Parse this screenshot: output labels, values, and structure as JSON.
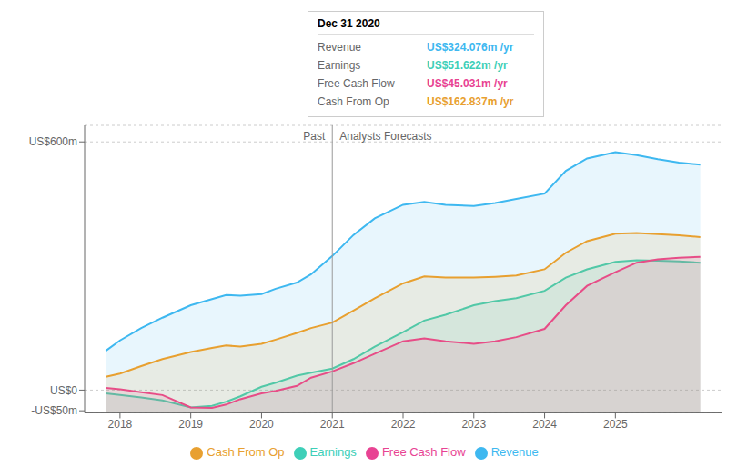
{
  "chart_data": {
    "type": "area",
    "x": [
      2017.8,
      2018.0,
      2018.3,
      2018.6,
      2019.0,
      2019.3,
      2019.5,
      2019.7,
      2020.0,
      2020.2,
      2020.5,
      2020.7,
      2021.0,
      2021.3,
      2021.6,
      2022.0,
      2022.3,
      2022.6,
      2023.0,
      2023.3,
      2023.6,
      2024.0,
      2024.3,
      2024.6,
      2025.0,
      2025.3,
      2025.6,
      2025.9,
      2026.2
    ],
    "series": [
      {
        "name": "Revenue",
        "color": "#3eb8f0",
        "values": [
          95,
          120,
          150,
          175,
          205,
          220,
          230,
          228,
          232,
          245,
          260,
          280,
          324,
          375,
          415,
          448,
          455,
          448,
          445,
          452,
          462,
          475,
          530,
          560,
          575,
          568,
          558,
          550,
          545
        ]
      },
      {
        "name": "Earnings",
        "color": "#3ecfb8",
        "values": [
          -8,
          -12,
          -18,
          -25,
          -42,
          -38,
          -28,
          -15,
          8,
          18,
          35,
          42,
          52,
          75,
          105,
          140,
          168,
          182,
          205,
          215,
          222,
          240,
          272,
          292,
          310,
          314,
          313,
          311,
          308
        ]
      },
      {
        "name": "Free Cash Flow",
        "color": "#e84393",
        "values": [
          5,
          2,
          -5,
          -12,
          -42,
          -43,
          -35,
          -22,
          -8,
          -2,
          10,
          30,
          45,
          65,
          88,
          118,
          125,
          118,
          112,
          118,
          128,
          148,
          205,
          252,
          285,
          308,
          316,
          320,
          322
        ]
      },
      {
        "name": "Cash From Op",
        "color": "#e8a030",
        "values": [
          32,
          40,
          58,
          75,
          92,
          102,
          108,
          105,
          112,
          122,
          138,
          150,
          163,
          192,
          222,
          258,
          275,
          272,
          272,
          274,
          277,
          292,
          332,
          360,
          378,
          380,
          377,
          374,
          370
        ]
      }
    ],
    "xlim": [
      2017.5,
      2026.5
    ],
    "xticks": [
      2018,
      2019,
      2020,
      2021,
      2022,
      2023,
      2024,
      2025
    ],
    "ylim": [
      -55,
      640
    ],
    "yticks": [
      {
        "value": -50,
        "label": "-US$50m"
      },
      {
        "value": 0,
        "label": "US$0"
      },
      {
        "value": 600,
        "label": "US$600m"
      }
    ],
    "grid": true,
    "legend": "bottom",
    "annotations": [
      {
        "text": "Past",
        "x": 2021,
        "align": "right"
      },
      {
        "text": "Analysts Forecasts",
        "x": 2021,
        "align": "left"
      }
    ],
    "tooltip": {
      "title": "Dec 31 2020",
      "rows": [
        {
          "label": "Revenue",
          "text": "US$324.076m /yr",
          "color": "#3eb8f0"
        },
        {
          "label": "Earnings",
          "text": "US$51.622m /yr",
          "color": "#3ecfb8"
        },
        {
          "label": "Free Cash Flow",
          "text": "US$45.031m /yr",
          "color": "#e84393"
        },
        {
          "label": "Cash From Op",
          "text": "US$162.837m /yr",
          "color": "#e8a030"
        }
      ]
    }
  }
}
